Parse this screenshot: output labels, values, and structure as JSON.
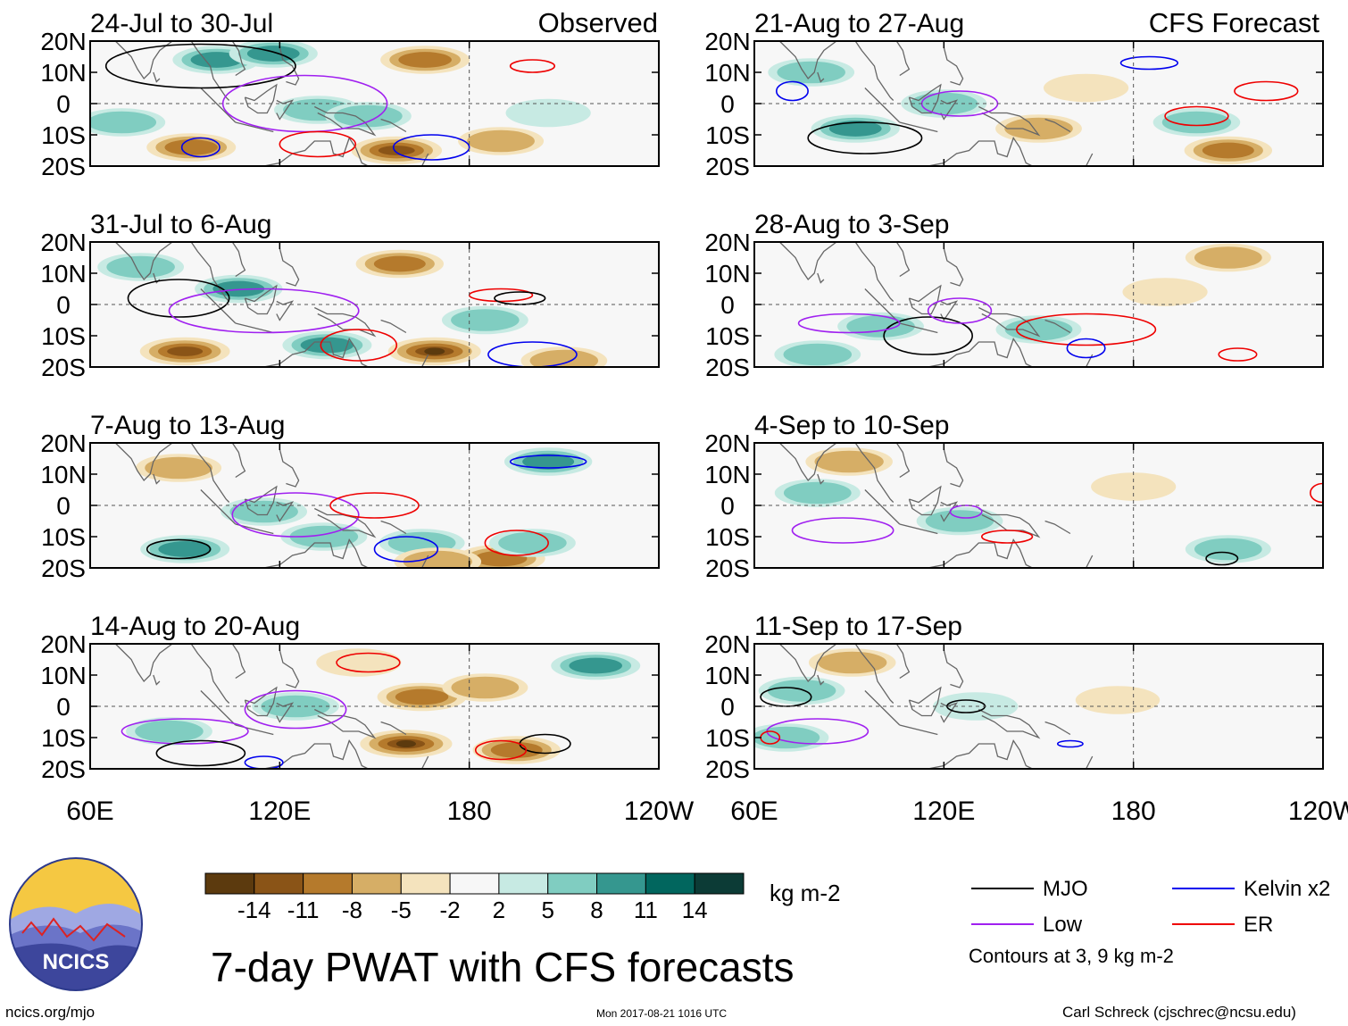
{
  "figure": {
    "title": "7-day PWAT with CFS forecasts",
    "units": "kg m-2",
    "observed_label": "Observed",
    "forecast_label": "CFS Forecast",
    "footer_left": "ncics.org/mjo",
    "footer_timestamp": "Mon 2017-08-21 1016 UTC",
    "footer_right": "Carl Schreck (cjschrec@ncsu.edu)",
    "contour_note": "Contours at 3, 9 kg m-2",
    "logo_text": "NCICS"
  },
  "legend": {
    "items": [
      {
        "label": "MJO",
        "color": "#000000"
      },
      {
        "label": "Kelvin x2",
        "color": "#0000ee"
      },
      {
        "label": "Low",
        "color": "#a020f0"
      },
      {
        "label": "ER",
        "color": "#ee0000"
      }
    ]
  },
  "chart_data": {
    "type": "heatmap",
    "variable": "7-day precipitable water (PWAT) anomaly",
    "colorbar": {
      "ticks": [
        "-14",
        "-11",
        "-8",
        "-5",
        "-2",
        "2",
        "5",
        "8",
        "11",
        "14"
      ],
      "bins": [
        {
          "range": "< -14",
          "color": "#5c3a0e"
        },
        {
          "range": "-14 to -11",
          "color": "#8a5417"
        },
        {
          "range": "-11 to -8",
          "color": "#b57a2c"
        },
        {
          "range": "-8 to -5",
          "color": "#d6ae66"
        },
        {
          "range": "-5 to -2",
          "color": "#f4e3bd"
        },
        {
          "range": "-2 to 2",
          "color": "#f7f7f7"
        },
        {
          "range": "2 to 5",
          "color": "#c7eae3"
        },
        {
          "range": "5 to 8",
          "color": "#80cdc1"
        },
        {
          "range": "8 to 11",
          "color": "#35978f"
        },
        {
          "range": "11 to 14",
          "color": "#01665e"
        },
        {
          "range": "> 14",
          "color": "#0c3b36"
        }
      ]
    },
    "x_axis": {
      "ticks": [
        "60E",
        "120E",
        "180",
        "120W"
      ],
      "range_deg_east": [
        60,
        240
      ]
    },
    "y_axis": {
      "ticks": [
        "20N",
        "10N",
        "0",
        "10S",
        "20S"
      ],
      "range_deg_lat": [
        -20,
        20
      ]
    },
    "panels": [
      {
        "column": "observed",
        "label": "24-Jul to 30-Jul",
        "anomalies": [
          {
            "lon": 92,
            "lat": -14,
            "v": -10
          },
          {
            "lon": 100,
            "lat": 14,
            "v": 8
          },
          {
            "lon": 118,
            "lat": 16,
            "v": 9
          },
          {
            "lon": 132,
            "lat": -2,
            "v": 7
          },
          {
            "lon": 148,
            "lat": -4,
            "v": 6
          },
          {
            "lon": 157,
            "lat": -15,
            "v": -12
          },
          {
            "lon": 166,
            "lat": 14,
            "v": -10
          },
          {
            "lon": 70,
            "lat": -6,
            "v": 7
          },
          {
            "lon": 190,
            "lat": -12,
            "v": -5
          },
          {
            "lon": 205,
            "lat": -3,
            "v": 4
          }
        ],
        "contours": [
          {
            "type": "MJO",
            "lon": 95,
            "lat": 12,
            "rx": 30,
            "ry": 7
          },
          {
            "type": "Kelvin",
            "lon": 95,
            "lat": -14,
            "rx": 6,
            "ry": 3
          },
          {
            "type": "Kelvin",
            "lon": 168,
            "lat": -14,
            "rx": 12,
            "ry": 4
          },
          {
            "type": "Low",
            "lon": 128,
            "lat": 0,
            "rx": 26,
            "ry": 9
          },
          {
            "type": "ER",
            "lon": 132,
            "lat": -13,
            "rx": 12,
            "ry": 4
          },
          {
            "type": "ER",
            "lon": 200,
            "lat": 12,
            "rx": 7,
            "ry": 2
          }
        ]
      },
      {
        "column": "observed",
        "label": "31-Jul to 6-Aug",
        "anomalies": [
          {
            "lon": 90,
            "lat": -15,
            "v": -11
          },
          {
            "lon": 107,
            "lat": 5,
            "v": 8
          },
          {
            "lon": 135,
            "lat": -13,
            "v": 10
          },
          {
            "lon": 169,
            "lat": -15,
            "v": -15
          },
          {
            "lon": 158,
            "lat": 13,
            "v": -8
          },
          {
            "lon": 185,
            "lat": -5,
            "v": 6
          },
          {
            "lon": 76,
            "lat": 12,
            "v": 6
          },
          {
            "lon": 210,
            "lat": -18,
            "v": -6
          }
        ],
        "contours": [
          {
            "type": "MJO",
            "lon": 88,
            "lat": 2,
            "rx": 16,
            "ry": 6
          },
          {
            "type": "Low",
            "lon": 115,
            "lat": -2,
            "rx": 30,
            "ry": 7
          },
          {
            "type": "ER",
            "lon": 145,
            "lat": -13,
            "rx": 12,
            "ry": 5
          },
          {
            "type": "ER",
            "lon": 190,
            "lat": 3,
            "rx": 10,
            "ry": 2
          },
          {
            "type": "Kelvin",
            "lon": 200,
            "lat": -16,
            "rx": 14,
            "ry": 4
          },
          {
            "type": "MJO",
            "lon": 196,
            "lat": 2,
            "rx": 8,
            "ry": 2
          }
        ]
      },
      {
        "column": "observed",
        "label": "7-Aug to 13-Aug",
        "anomalies": [
          {
            "lon": 90,
            "lat": -14,
            "v": 10
          },
          {
            "lon": 115,
            "lat": -2,
            "v": 6
          },
          {
            "lon": 134,
            "lat": -10,
            "v": 6
          },
          {
            "lon": 165,
            "lat": -12,
            "v": 5
          },
          {
            "lon": 190,
            "lat": -17,
            "v": -9
          },
          {
            "lon": 170,
            "lat": -18,
            "v": -7
          },
          {
            "lon": 88,
            "lat": 12,
            "v": -5
          },
          {
            "lon": 205,
            "lat": 14,
            "v": 8
          },
          {
            "lon": 200,
            "lat": -12,
            "v": 6
          }
        ],
        "contours": [
          {
            "type": "MJO",
            "lon": 88,
            "lat": -14,
            "rx": 10,
            "ry": 3
          },
          {
            "type": "Low",
            "lon": 125,
            "lat": -3,
            "rx": 20,
            "ry": 7
          },
          {
            "type": "ER",
            "lon": 150,
            "lat": 0,
            "rx": 14,
            "ry": 4
          },
          {
            "type": "ER",
            "lon": 195,
            "lat": -12,
            "rx": 10,
            "ry": 4
          },
          {
            "type": "Kelvin",
            "lon": 160,
            "lat": -14,
            "rx": 10,
            "ry": 4
          },
          {
            "type": "Kelvin",
            "lon": 205,
            "lat": 14,
            "rx": 12,
            "ry": 2
          }
        ]
      },
      {
        "column": "observed",
        "label": "14-Aug to 20-Aug",
        "anomalies": [
          {
            "lon": 160,
            "lat": -12,
            "v": -14
          },
          {
            "lon": 165,
            "lat": 3,
            "v": -10
          },
          {
            "lon": 125,
            "lat": 0,
            "v": 7
          },
          {
            "lon": 85,
            "lat": -8,
            "v": 6
          },
          {
            "lon": 220,
            "lat": 13,
            "v": 10
          },
          {
            "lon": 195,
            "lat": -14,
            "v": -8
          },
          {
            "lon": 185,
            "lat": 6,
            "v": -5
          },
          {
            "lon": 145,
            "lat": 14,
            "v": -4
          }
        ],
        "contours": [
          {
            "type": "Low",
            "lon": 125,
            "lat": -1,
            "rx": 16,
            "ry": 6
          },
          {
            "type": "Low",
            "lon": 90,
            "lat": -8,
            "rx": 20,
            "ry": 4
          },
          {
            "type": "MJO",
            "lon": 95,
            "lat": -15,
            "rx": 14,
            "ry": 4
          },
          {
            "type": "MJO",
            "lon": 204,
            "lat": -12,
            "rx": 8,
            "ry": 3
          },
          {
            "type": "ER",
            "lon": 148,
            "lat": 14,
            "rx": 10,
            "ry": 3
          },
          {
            "type": "ER",
            "lon": 190,
            "lat": -14,
            "rx": 8,
            "ry": 3
          },
          {
            "type": "Kelvin",
            "lon": 115,
            "lat": -18,
            "rx": 6,
            "ry": 2
          }
        ]
      },
      {
        "column": "forecast",
        "label": "21-Aug to 27-Aug",
        "anomalies": [
          {
            "lon": 92,
            "lat": -8,
            "v": 9
          },
          {
            "lon": 78,
            "lat": 10,
            "v": 6
          },
          {
            "lon": 150,
            "lat": -8,
            "v": -6
          },
          {
            "lon": 200,
            "lat": -6,
            "v": 7
          },
          {
            "lon": 210,
            "lat": -15,
            "v": -8
          },
          {
            "lon": 165,
            "lat": 5,
            "v": -4
          },
          {
            "lon": 120,
            "lat": 0,
            "v": 5
          }
        ],
        "contours": [
          {
            "type": "MJO",
            "lon": 95,
            "lat": -11,
            "rx": 18,
            "ry": 5
          },
          {
            "type": "Low",
            "lon": 125,
            "lat": 0,
            "rx": 12,
            "ry": 4
          },
          {
            "type": "ER",
            "lon": 200,
            "lat": -4,
            "rx": 10,
            "ry": 3
          },
          {
            "type": "ER",
            "lon": 222,
            "lat": 4,
            "rx": 10,
            "ry": 3
          },
          {
            "type": "Kelvin",
            "lon": 185,
            "lat": 13,
            "rx": 9,
            "ry": 2
          },
          {
            "type": "Kelvin",
            "lon": 72,
            "lat": 4,
            "rx": 5,
            "ry": 3
          }
        ]
      },
      {
        "column": "forecast",
        "label": "28-Aug to 3-Sep",
        "anomalies": [
          {
            "lon": 100,
            "lat": -7,
            "v": 6
          },
          {
            "lon": 150,
            "lat": -8,
            "v": 5
          },
          {
            "lon": 190,
            "lat": 4,
            "v": -4
          },
          {
            "lon": 210,
            "lat": 15,
            "v": -5
          },
          {
            "lon": 80,
            "lat": -16,
            "v": 6
          }
        ],
        "contours": [
          {
            "type": "MJO",
            "lon": 115,
            "lat": -10,
            "rx": 14,
            "ry": 6
          },
          {
            "type": "Low",
            "lon": 125,
            "lat": -2,
            "rx": 10,
            "ry": 4
          },
          {
            "type": "Low",
            "lon": 90,
            "lat": -6,
            "rx": 16,
            "ry": 3
          },
          {
            "type": "ER",
            "lon": 165,
            "lat": -8,
            "rx": 22,
            "ry": 5
          },
          {
            "type": "ER",
            "lon": 213,
            "lat": -16,
            "rx": 6,
            "ry": 2
          },
          {
            "type": "Kelvin",
            "lon": 165,
            "lat": -14,
            "rx": 6,
            "ry": 3
          }
        ]
      },
      {
        "column": "forecast",
        "label": "4-Sep to 10-Sep",
        "anomalies": [
          {
            "lon": 90,
            "lat": 14,
            "v": -7
          },
          {
            "lon": 80,
            "lat": 4,
            "v": 5
          },
          {
            "lon": 125,
            "lat": -5,
            "v": 6
          },
          {
            "lon": 180,
            "lat": 6,
            "v": -4
          },
          {
            "lon": 210,
            "lat": -14,
            "v": 5
          }
        ],
        "contours": [
          {
            "type": "Low",
            "lon": 88,
            "lat": -8,
            "rx": 16,
            "ry": 4
          },
          {
            "type": "Low",
            "lon": 127,
            "lat": -2,
            "rx": 5,
            "ry": 2
          },
          {
            "type": "ER",
            "lon": 140,
            "lat": -10,
            "rx": 8,
            "ry": 2
          },
          {
            "type": "MJO",
            "lon": 208,
            "lat": -17,
            "rx": 5,
            "ry": 2
          },
          {
            "type": "ER",
            "lon": 240,
            "lat": 4,
            "rx": 4,
            "ry": 3
          }
        ]
      },
      {
        "column": "forecast",
        "label": "11-Sep to 17-Sep",
        "anomalies": [
          {
            "lon": 91,
            "lat": 14,
            "v": -7
          },
          {
            "lon": 75,
            "lat": 5,
            "v": 6
          },
          {
            "lon": 130,
            "lat": 0,
            "v": 4
          },
          {
            "lon": 175,
            "lat": 2,
            "v": -3
          },
          {
            "lon": 70,
            "lat": -10,
            "v": 5
          }
        ],
        "contours": [
          {
            "type": "MJO",
            "lon": 70,
            "lat": 3,
            "rx": 8,
            "ry": 3
          },
          {
            "type": "MJO",
            "lon": 127,
            "lat": 0,
            "rx": 6,
            "ry": 2
          },
          {
            "type": "Low",
            "lon": 80,
            "lat": -8,
            "rx": 16,
            "ry": 4
          },
          {
            "type": "ER",
            "lon": 65,
            "lat": -10,
            "rx": 3,
            "ry": 2
          },
          {
            "type": "Kelvin",
            "lon": 160,
            "lat": -12,
            "rx": 4,
            "ry": 1
          }
        ]
      }
    ]
  }
}
